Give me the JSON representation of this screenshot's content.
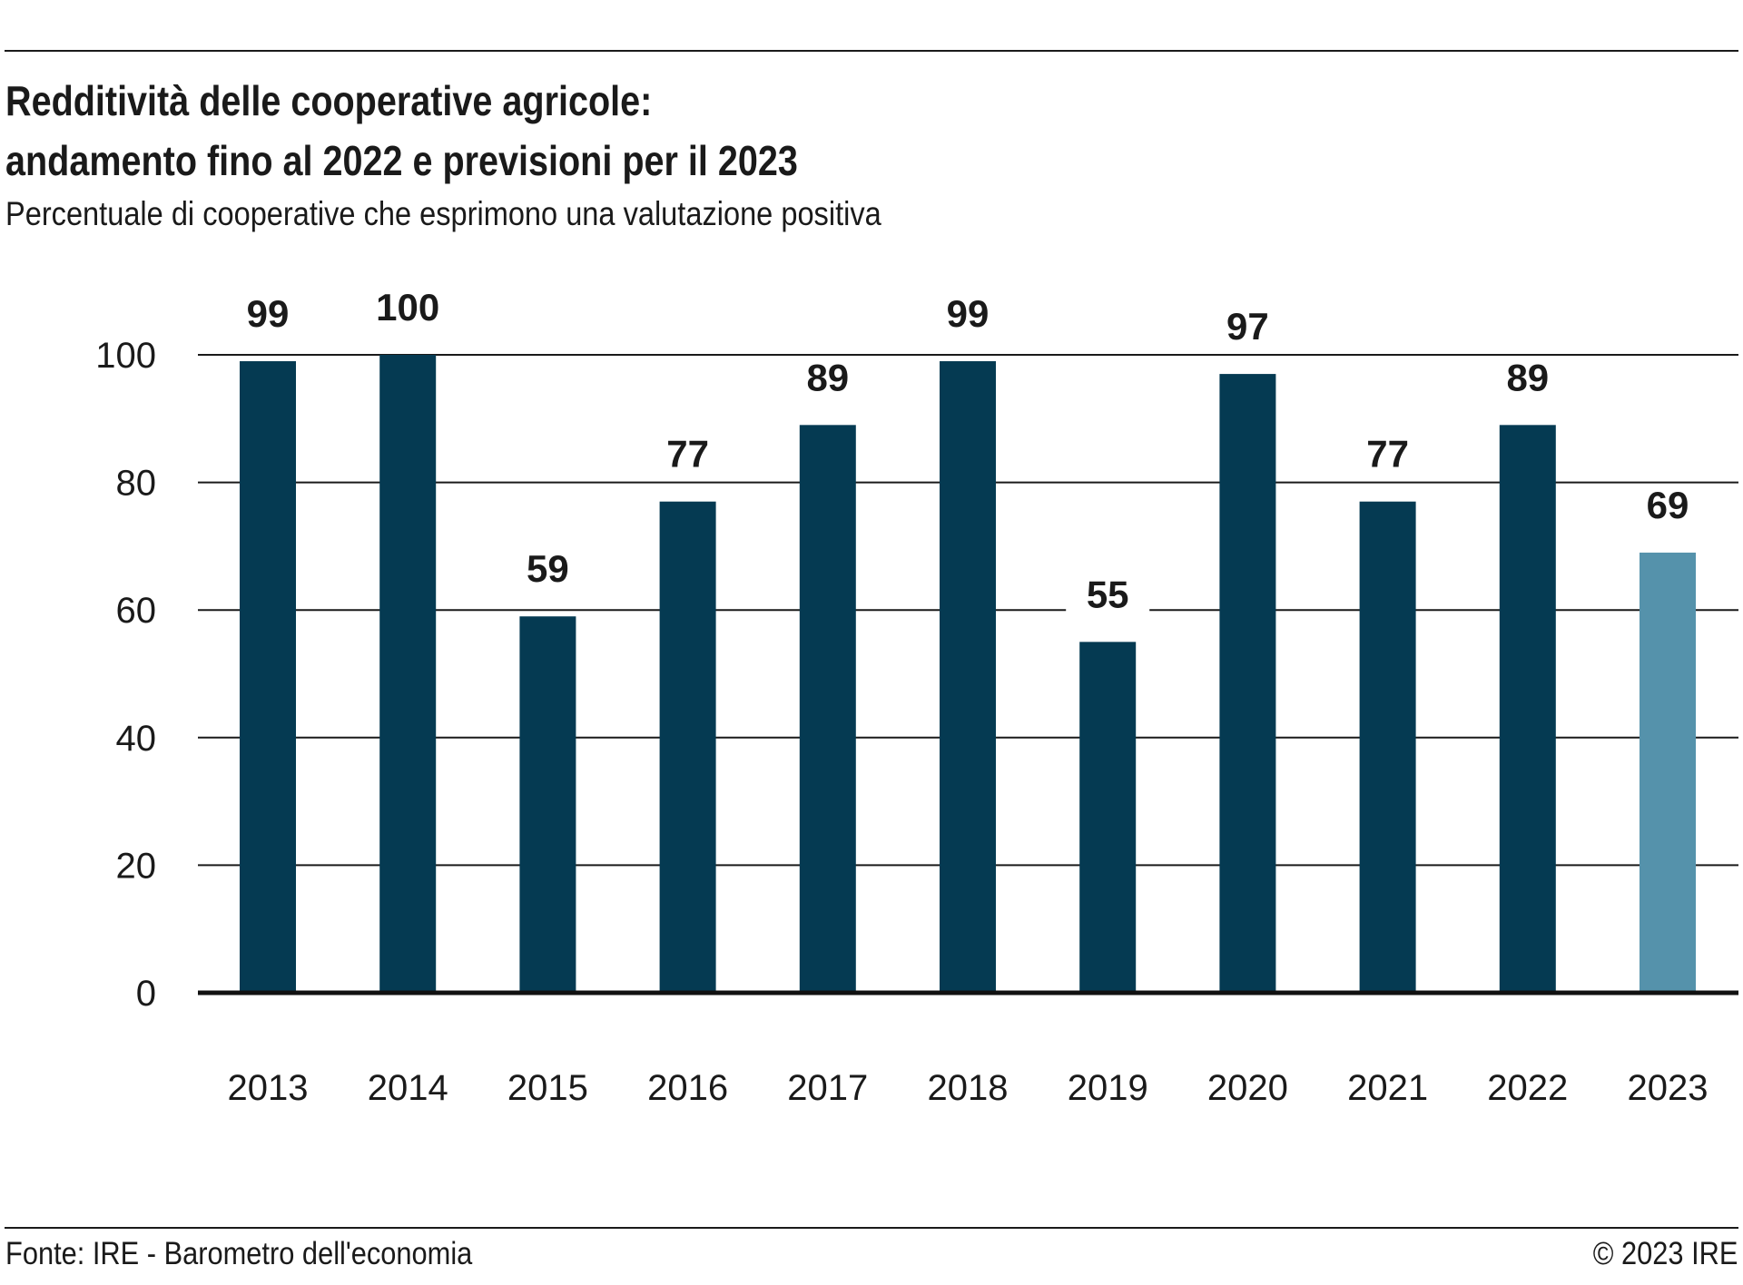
{
  "header": {
    "title_line1": "Redditività delle cooperative agricole:",
    "title_line2": "andamento fino al 2022 e previsioni per il 2023",
    "subtitle": "Percentuale di cooperative che esprimono una valutazione positiva"
  },
  "footer": {
    "source": "Fonte: IRE - Barometro dell'economia",
    "copyright": "© 2023 IRE"
  },
  "colors": {
    "actual": "#053a52",
    "forecast": "#5592ab",
    "grid": "#1a1a1a"
  },
  "chart_data": {
    "type": "bar",
    "categories": [
      "2013",
      "2014",
      "2015",
      "2016",
      "2017",
      "2018",
      "2019",
      "2020",
      "2021",
      "2022",
      "2023"
    ],
    "values": [
      99,
      100,
      59,
      77,
      89,
      99,
      55,
      97,
      77,
      89,
      69
    ],
    "forecast": [
      false,
      false,
      false,
      false,
      false,
      false,
      false,
      false,
      false,
      false,
      true
    ],
    "ylim": [
      0,
      100
    ],
    "yticks": [
      0,
      20,
      40,
      60,
      80,
      100
    ],
    "grid": true,
    "data_labels": true
  }
}
